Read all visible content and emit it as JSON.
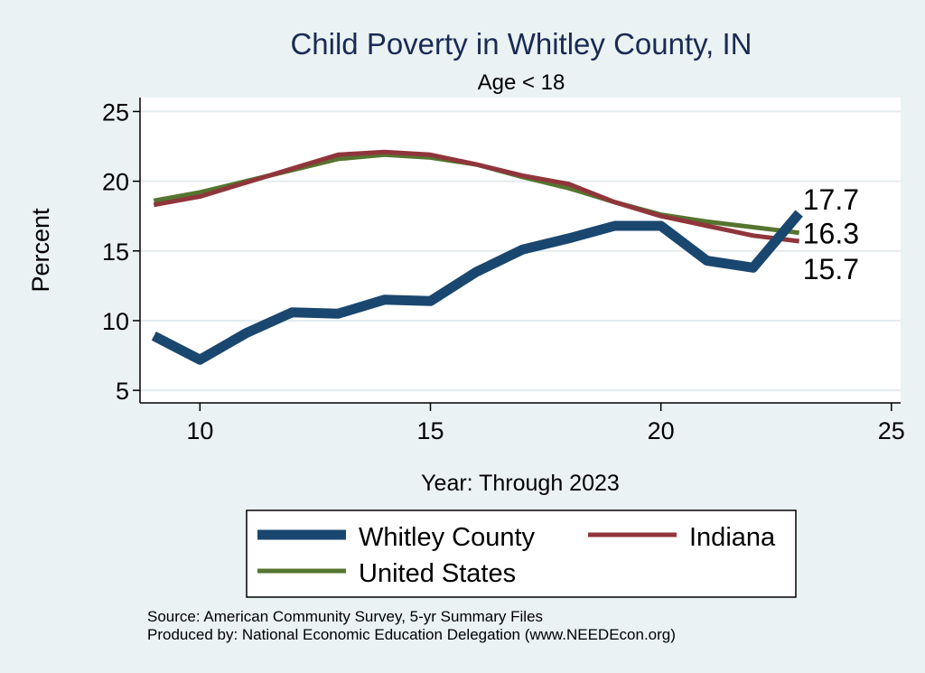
{
  "chart_data": {
    "type": "line",
    "title": "Child Poverty in Whitley County, IN",
    "subtitle": "Age < 18",
    "xlabel": "Year: Through 2023",
    "ylabel": "Percent",
    "xlim": [
      8.7,
      25.2
    ],
    "ylim": [
      4.1,
      26.0
    ],
    "xticks": [
      10,
      15,
      20,
      25
    ],
    "yticks": [
      5,
      10,
      15,
      20,
      25
    ],
    "grid": true,
    "x": [
      9,
      10,
      11,
      12,
      13,
      14,
      15,
      16,
      17,
      18,
      19,
      20,
      21,
      22,
      23
    ],
    "series": [
      {
        "name": "Whitley County",
        "color": "#1a476f",
        "width": 11,
        "values": [
          8.9,
          7.2,
          9.1,
          10.6,
          10.5,
          11.5,
          11.4,
          13.5,
          15.1,
          15.9,
          16.8,
          16.8,
          14.3,
          13.8,
          17.7
        ],
        "end_label": "17.7"
      },
      {
        "name": "Indiana",
        "color": "#90353b",
        "width": 5,
        "values": [
          18.3,
          18.9,
          19.9,
          20.9,
          21.9,
          22.1,
          21.9,
          21.2,
          20.4,
          19.8,
          18.5,
          17.5,
          16.8,
          16.1,
          15.7
        ],
        "end_label": "15.7"
      },
      {
        "name": "United States",
        "color": "#55752f",
        "width": 5,
        "values": [
          18.6,
          19.2,
          20.0,
          20.8,
          21.6,
          21.9,
          21.7,
          21.2,
          20.3,
          19.5,
          18.5,
          17.6,
          17.1,
          16.7,
          16.3
        ],
        "end_label": "16.3"
      }
    ],
    "legend": {
      "placement": "bottom",
      "entries": [
        "Whitley County",
        "Indiana",
        "United States"
      ]
    }
  },
  "footer": {
    "source": "Source: American Community Survey, 5-yr Summary Files",
    "produced": "Produced by: National Economic Education Delegation (www.NEEDEcon.org)"
  },
  "colors": {
    "background": "#eaf2f3",
    "plot_background": "#ffffff",
    "title": "#1a2a55"
  }
}
